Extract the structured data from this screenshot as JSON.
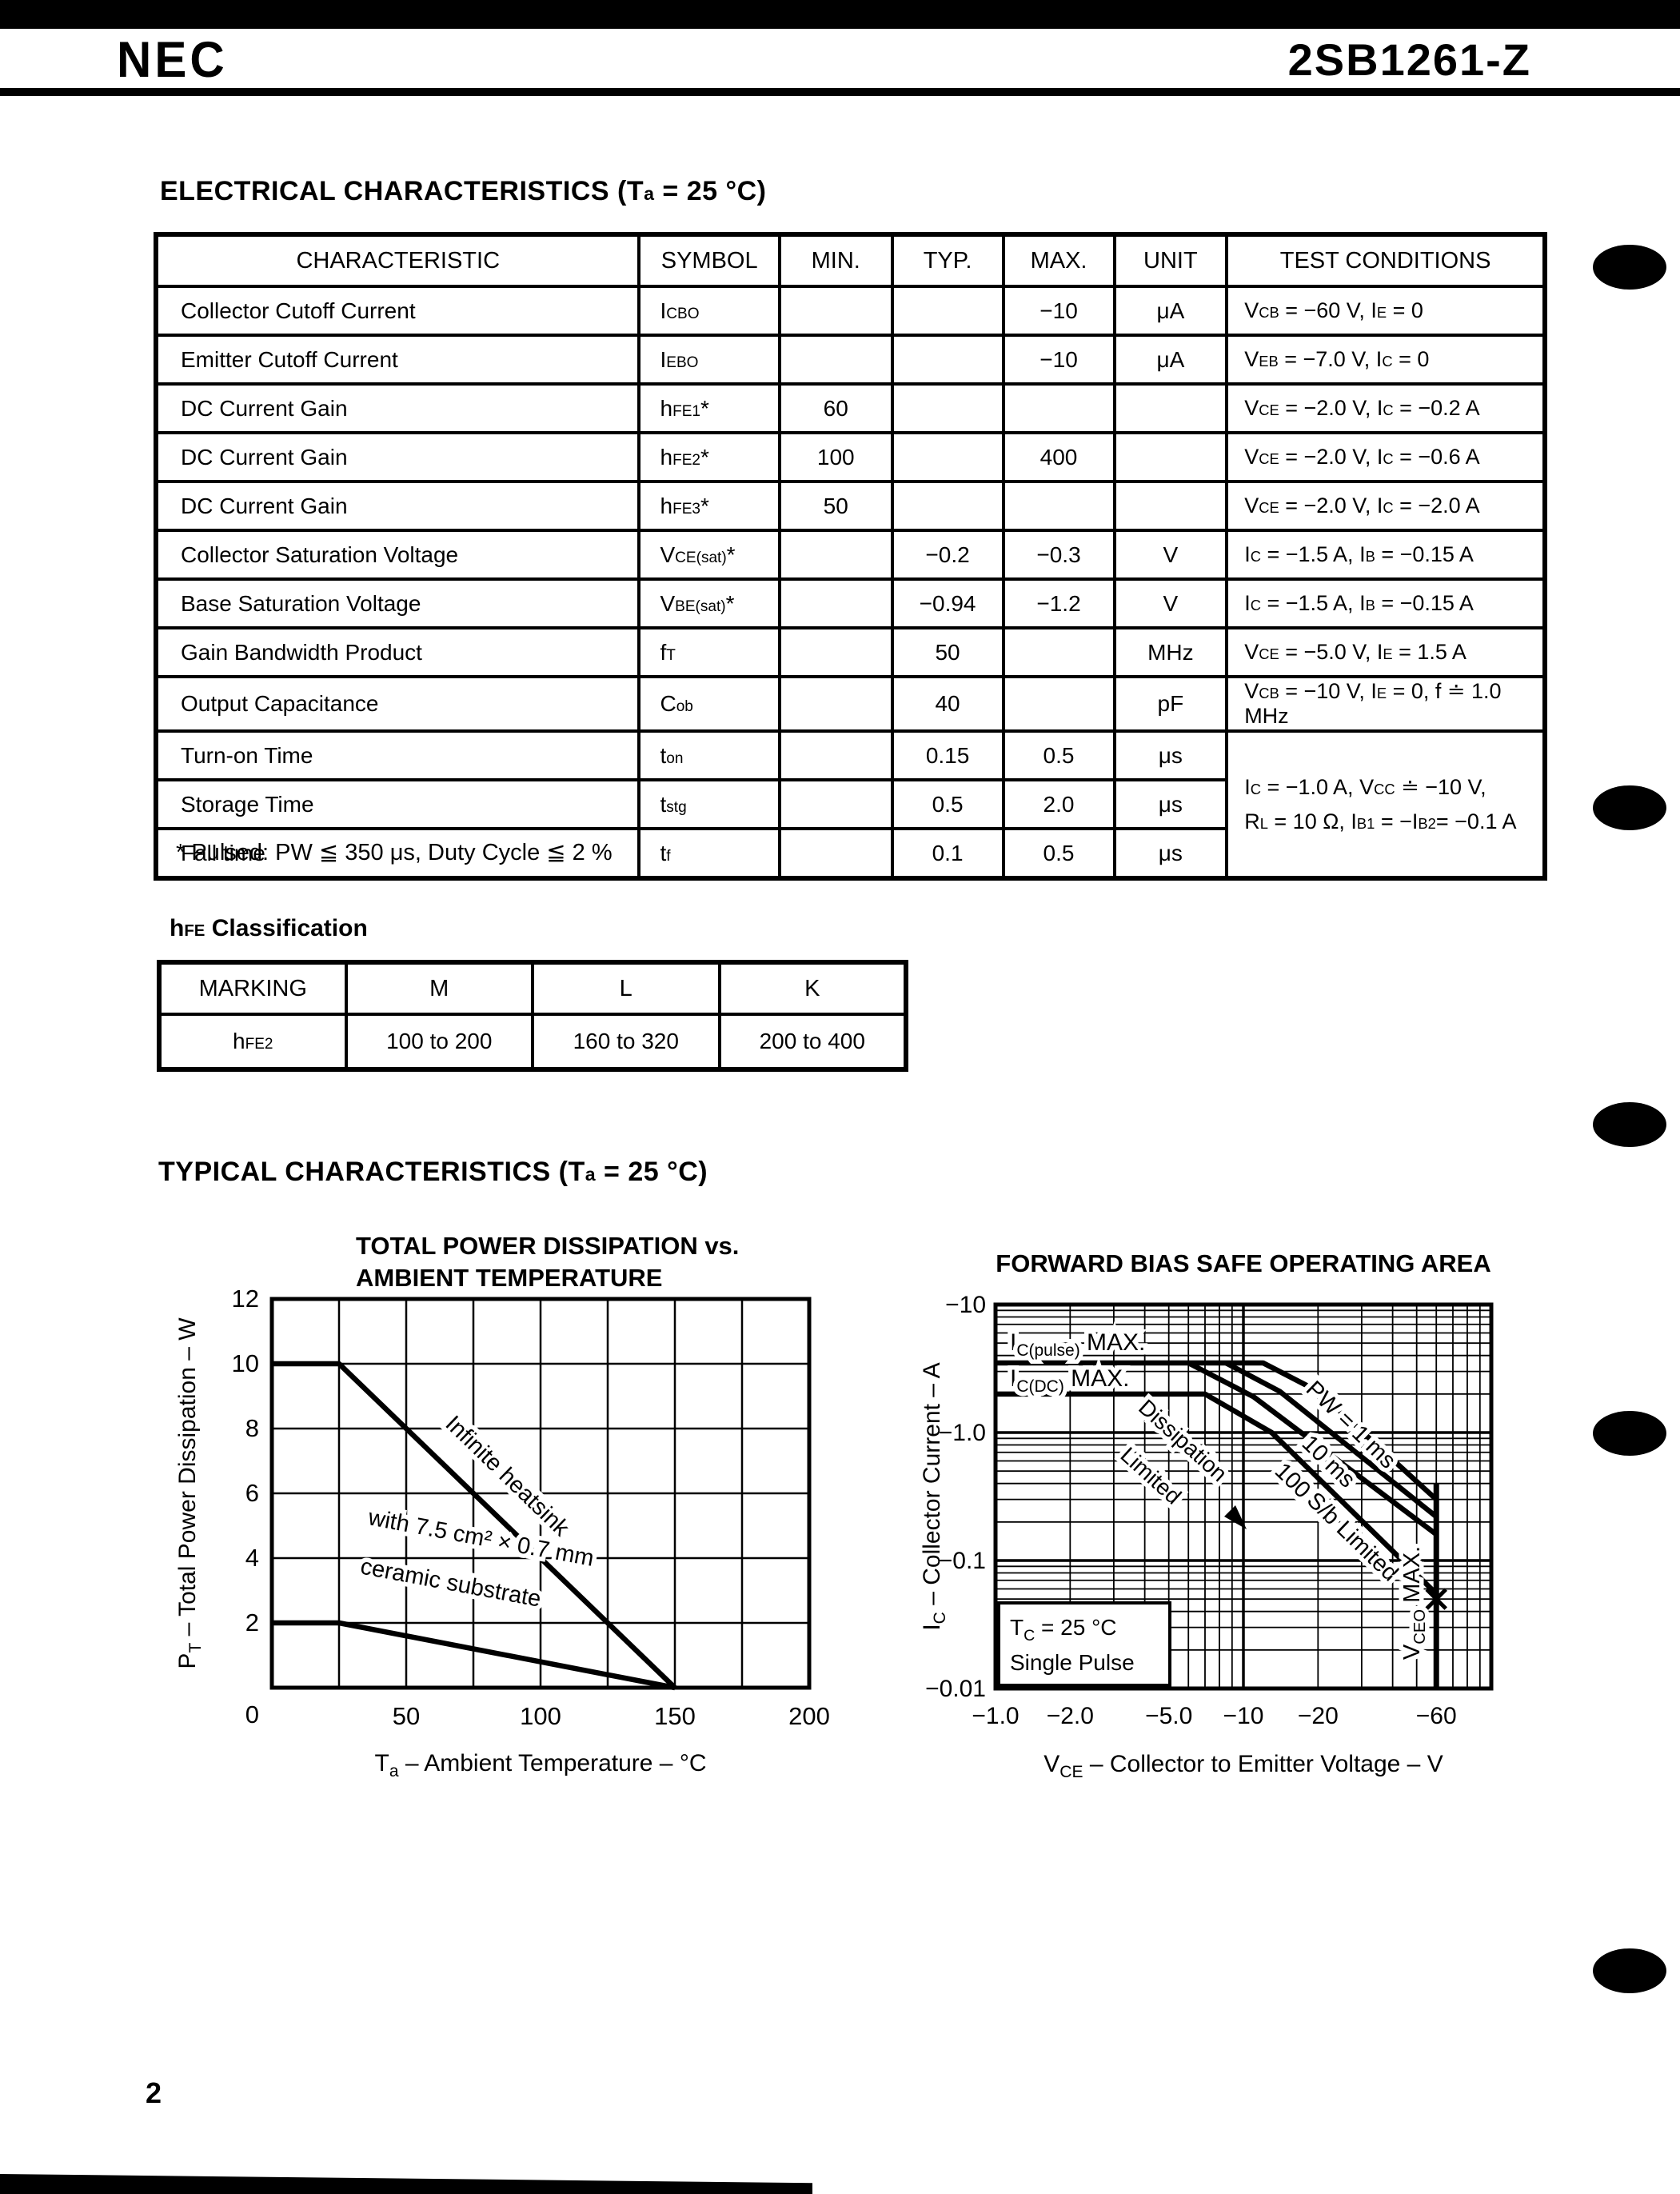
{
  "header": {
    "logo": "NEC",
    "part_number": "2SB1261-Z"
  },
  "sections": {
    "electrical_title": "ELECTRICAL CHARACTERISTICS (T~a~ = 25 °C)",
    "typical_title": "TYPICAL CHARACTERISTICS (T~a~ = 25 °C)",
    "hfe_title": "h~FE~ Classification"
  },
  "char_table": {
    "headers": [
      "CHARACTERISTIC",
      "SYMBOL",
      "MIN.",
      "TYP.",
      "MAX.",
      "UNIT",
      "TEST CONDITIONS"
    ],
    "rows": [
      {
        "char": "Collector Cutoff Current",
        "sym": "I~CBO~",
        "min": "",
        "typ": "",
        "max": "−10",
        "unit": "μA",
        "cond": "V~CB~ = −60 V, I~E~ = 0"
      },
      {
        "char": "Emitter Cutoff Current",
        "sym": "I~EBO~",
        "min": "",
        "typ": "",
        "max": "−10",
        "unit": "μA",
        "cond": "V~EB~ = −7.0 V, I~C~ = 0"
      },
      {
        "char": "DC Current Gain",
        "sym": "h~FE1~*",
        "min": "60",
        "typ": "",
        "max": "",
        "unit": "",
        "cond": "V~CE~ = −2.0 V, I~C~ = −0.2 A"
      },
      {
        "char": "DC Current Gain",
        "sym": "h~FE2~*",
        "min": "100",
        "typ": "",
        "max": "400",
        "unit": "",
        "cond": "V~CE~ = −2.0 V, I~C~ = −0.6 A"
      },
      {
        "char": "DC Current Gain",
        "sym": "h~FE3~*",
        "min": "50",
        "typ": "",
        "max": "",
        "unit": "",
        "cond": "V~CE~ = −2.0 V, I~C~ = −2.0 A"
      },
      {
        "char": "Collector Saturation Voltage",
        "sym": "V~CE(sat)~*",
        "min": "",
        "typ": "−0.2",
        "max": "−0.3",
        "unit": "V",
        "cond": "I~C~ = −1.5 A, I~B~ = −0.15 A"
      },
      {
        "char": "Base Saturation Voltage",
        "sym": "V~BE(sat)~*",
        "min": "",
        "typ": "−0.94",
        "max": "−1.2",
        "unit": "V",
        "cond": "I~C~ = −1.5 A, I~B~ = −0.15 A"
      },
      {
        "char": "Gain Bandwidth Product",
        "sym": "f~T~",
        "min": "",
        "typ": "50",
        "max": "",
        "unit": "MHz",
        "cond": "V~CE~ = −5.0 V, I~E~ = 1.5 A"
      },
      {
        "char": "Output Capacitance",
        "sym": "C~ob~",
        "min": "",
        "typ": "40",
        "max": "",
        "unit": "pF",
        "cond": "V~CB~ = −10 V, I~E~ = 0, f ≐ 1.0 MHz"
      },
      {
        "char": "Turn-on Time",
        "sym": "t~on~",
        "min": "",
        "typ": "0.15",
        "max": "0.5",
        "unit": "μs",
        "cond": "@merged"
      },
      {
        "char": "Storage Time",
        "sym": "t~stg~",
        "min": "",
        "typ": "0.5",
        "max": "2.0",
        "unit": "μs",
        "cond": null
      },
      {
        "char": "Fall time",
        "sym": "t~f~",
        "min": "",
        "typ": "0.1",
        "max": "0.5",
        "unit": "μs",
        "cond": null
      }
    ],
    "merged_condition": {
      "rowspan": 3,
      "lines": [
        "I~C~ = −1.0 A, V~CC~ ≐ −10 V,",
        "R~L~ = 10 Ω, I~B1~ = −I~B2~= −0.1 A"
      ]
    },
    "footnote": "* Pulsed: PW ≦ 350 μs, Duty Cycle ≦ 2 %"
  },
  "hfe_table": {
    "headers": [
      "MARKING",
      "M",
      "L",
      "K"
    ],
    "row_label": "h~FE2~",
    "values": [
      "100 to 200",
      "160 to 320",
      "200 to 400"
    ]
  },
  "page_number": "2",
  "chart_data": [
    {
      "type": "line",
      "title_lines": [
        "TOTAL POWER DISSIPATION vs.",
        "AMBIENT TEMPERATURE"
      ],
      "xlabel": "T~a~ – Ambient Temperature – °C",
      "ylabel": "P~T~ – Total Power Dissipation – W",
      "xlim": [
        0,
        200
      ],
      "ylim": [
        0,
        12
      ],
      "xticks": [
        0,
        50,
        100,
        150,
        200
      ],
      "yticks": [
        2,
        4,
        6,
        8,
        10,
        12
      ],
      "grid_step": {
        "x": 25,
        "y": 2
      },
      "grid": "on",
      "series": [
        {
          "id": "infinite-heatsink",
          "name": "Infinite heatsink",
          "points": [
            [
              0,
              10
            ],
            [
              25,
              10
            ],
            [
              150,
              0
            ]
          ]
        },
        {
          "id": "ceramic-substrate",
          "name": "with 7.5 cm² × 0.7 mm ceramic substrate",
          "label_lines": [
            "with 7.5 cm² × 0.7 mm",
            "ceramic substrate"
          ],
          "points": [
            [
              0,
              2
            ],
            [
              25,
              2
            ],
            [
              150,
              0
            ]
          ]
        }
      ]
    },
    {
      "type": "line",
      "scale": "log-log",
      "title": "FORWARD BIAS SAFE OPERATING AREA",
      "xlabel": "V~CE~ – Collector to Emitter Voltage – V",
      "ylabel": "I~C~ – Collector Current – A",
      "xlim_v": [
        -1.0,
        -100
      ],
      "ylim_a": [
        -0.01,
        -10
      ],
      "xticks": [
        {
          "v": 1,
          "label": "−1.0"
        },
        {
          "v": 2,
          "label": "−2.0"
        },
        {
          "v": 5,
          "label": "−5.0"
        },
        {
          "v": 10,
          "label": "−10"
        },
        {
          "v": 20,
          "label": "−20"
        },
        {
          "v": 60,
          "label": "−60"
        }
      ],
      "yticks": [
        {
          "v": 10,
          "label": "−10"
        },
        {
          "v": 1,
          "label": "−1.0"
        },
        {
          "v": 0.1,
          "label": "−0.1"
        },
        {
          "v": 0.01,
          "label": "−0.01"
        }
      ],
      "ic_pulse_max_a": 3.5,
      "ic_dc_max_a": 2.0,
      "vceo_max_v": 60,
      "series": [
        {
          "id": "pw-1ms",
          "name": "PW = 1 ms",
          "points": [
            [
              1,
              3.5
            ],
            [
              12,
              3.5
            ],
            [
              20,
              2.1
            ],
            [
              60,
              0.3
            ]
          ]
        },
        {
          "id": "pw-10ms",
          "name": "10 ms",
          "points": [
            [
              8.5,
              3.5
            ],
            [
              14,
              2.1
            ],
            [
              60,
              0.22
            ]
          ]
        },
        {
          "id": "pw-100ms",
          "name": "100 ms",
          "points": [
            [
              6,
              3.5
            ],
            [
              11,
              1.9
            ],
            [
              60,
              0.16
            ]
          ]
        },
        {
          "id": "dc-sb",
          "name": "DC – Dissipation / S-b Limited",
          "points": [
            [
              1,
              2
            ],
            [
              7,
              2
            ],
            [
              13,
              1.0
            ],
            [
              60,
              0.055
            ]
          ]
        }
      ],
      "labels": {
        "ic_pulse": "I~C(pulse)~ MAX.",
        "ic_dc": "I~C(DC)~ MAX.",
        "dissipation": [
          "Dissipation",
          "Limited"
        ],
        "pw1": "PW = 1 ms",
        "pw10": "10 ms",
        "pw100": "100 ms",
        "sb": "S/b Limited",
        "vceo": "V~CEO~ MAX."
      },
      "condition_box": [
        "T~C~ = 25 °C",
        "Single Pulse"
      ]
    }
  ]
}
